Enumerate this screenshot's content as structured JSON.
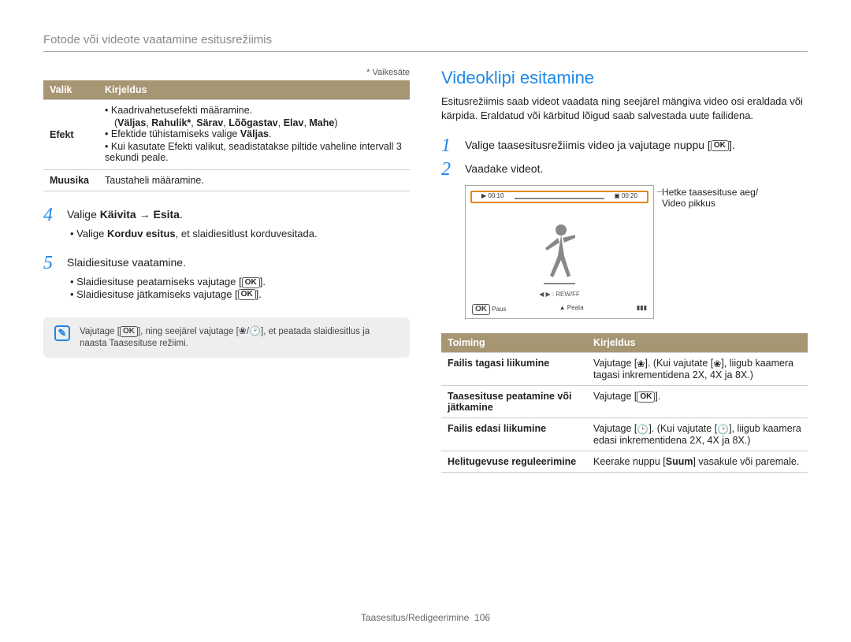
{
  "header": "Fotode või videote vaatamine esitusrežiimis",
  "left": {
    "default_note": "* Vaikesäte",
    "table1": {
      "headers": [
        "Valik",
        "Kirjeldus"
      ],
      "rows": [
        {
          "label": "Efekt",
          "items": [
            "Kaadrivahetusefekti määramine.",
            "(<b>Väljas</b>, <b>Rahulik*</b>, <b>Särav</b>, <b>Lõõgastav</b>, <b>Elav</b>, <b>Mahe</b>)",
            "Efektide tühistamiseks valige <b>Väljas</b>.",
            "Kui kasutate Efekti valikut, seadistatakse piltide vaheline intervall 3 sekundi peale."
          ]
        },
        {
          "label": "Muusika",
          "items": [
            "Taustaheli määramine."
          ]
        }
      ]
    },
    "step4": {
      "num": "4",
      "text": "Valige <b>Käivita</b> → <b>Esita</b>."
    },
    "step4_sub": "Valige <b>Korduv esitus</b>, et slaidiesitlust korduvesitada.",
    "step5": {
      "num": "5",
      "text": "Slaidiesituse vaatamine."
    },
    "step5_subs": [
      "Slaidiesituse peatamiseks vajutage [<span class='ok-badge'>OK</span>].",
      "Slaidiesituse jätkamiseks vajutage [<span class='ok-badge'>OK</span>]."
    ],
    "note": "Vajutage [<span class='ok-badge'>OK</span>], ning seejärel vajutage [<span class='flower-icon'>❀</span>/<span class='clock-icon'>🕑</span>], et peatada slaidiesitlus ja naasta Taasesituse režiimi."
  },
  "right": {
    "title": "Videoklipi esitamine",
    "intro": "Esitusrežiimis saab videot vaadata ning seejärel mängiva video osi eraldada või kärpida. Eraldatud või kärbitud lõigud saab salvestada uute failidena.",
    "step1": {
      "num": "1",
      "text": "Valige taasesitusrežiimis video ja vajutage nuppu [<span class='ok-badge'>OK</span>]."
    },
    "step2": {
      "num": "2",
      "text": "Vaadake videot."
    },
    "player": {
      "time_left": "00:10",
      "time_right": "00:20",
      "rewff": "◀ ▶ : REW/FF",
      "paus_label": "Paus",
      "peata_label": "Peata",
      "ok_small": "OK"
    },
    "media_caption": "Hetke taasesituse aeg/\nVideo pikkus",
    "table2": {
      "headers": [
        "Toiming",
        "Kirjeldus"
      ],
      "rows": [
        {
          "label": "Failis tagasi liikumine",
          "desc": "Vajutage [<span class='flower-icon'>❀</span>]. (Kui vajutate [<span class='flower-icon'>❀</span>], liigub kaamera tagasi inkrementidena 2X, 4X ja 8X.)"
        },
        {
          "label": "Taasesituse peatamine või jätkamine",
          "desc": "Vajutage [<span class='ok-badge'>OK</span>]."
        },
        {
          "label": "Failis edasi liikumine",
          "desc": "Vajutage [<span class='clock-icon'>🕑</span>]. (Kui vajutate [<span class='clock-icon'>🕑</span>], liigub kaamera edasi inkrementidena 2X, 4X ja 8X.)"
        },
        {
          "label": "Helitugevuse reguleerimine",
          "desc": "Keerake nuppu [<b>Suum</b>] vasakule või paremale."
        }
      ]
    }
  },
  "footer": {
    "section": "Taasesitus/Redigeerimine",
    "page": "106"
  },
  "colors": {
    "header_bg": "#a79673",
    "accent": "#1e88e5",
    "highlight": "#e2871e"
  }
}
